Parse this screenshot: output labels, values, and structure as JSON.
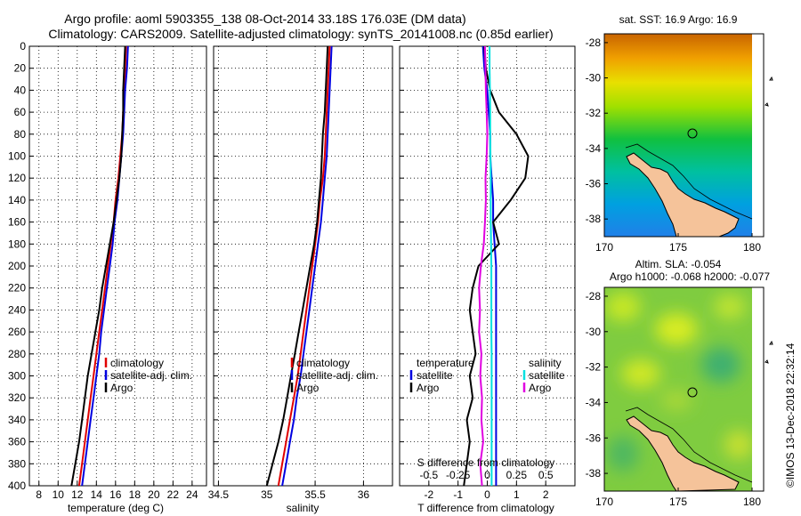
{
  "header": {
    "title_line1": "Argo profile: aoml 5903355_138 08-Oct-2014 33.18S 176.03E (DM data)",
    "title_line2": "Climatology: CARS2009. Satellite-adjusted climatology: synTS_20141008.nc (0.85d earlier)"
  },
  "footer": {
    "credit": "©IMOS 13-Dec-2018 22:32:14"
  },
  "colors": {
    "climatology": "#e00000",
    "satellite": "#0000e0",
    "argo": "#000000",
    "s_satellite": "#00e0e0",
    "s_argo": "#e000e0"
  },
  "chart_data": [
    {
      "type": "line",
      "id": "temperature",
      "xlabel": "temperature (deg C)",
      "ylabel": "depth",
      "xlim": [
        7,
        25.5
      ],
      "ylim": [
        400,
        0
      ],
      "xticks": [
        8,
        10,
        12,
        14,
        16,
        18,
        20,
        22,
        24
      ],
      "yticks": [
        0,
        20,
        40,
        60,
        80,
        100,
        120,
        140,
        160,
        180,
        200,
        220,
        240,
        260,
        280,
        300,
        320,
        340,
        360,
        380,
        400
      ],
      "grid": true,
      "legend": [
        "climatology",
        "satellite-adj. clim.",
        "Argo"
      ],
      "series": [
        {
          "name": "climatology",
          "color": "#e00000",
          "depth": [
            0,
            20,
            40,
            60,
            80,
            100,
            120,
            140,
            160,
            180,
            200,
            220,
            240,
            260,
            280,
            300,
            320,
            340,
            360,
            380,
            400
          ],
          "values": [
            17.1,
            17.0,
            16.9,
            16.8,
            16.7,
            16.5,
            16.3,
            16.0,
            15.8,
            15.5,
            15.2,
            14.9,
            14.6,
            14.3,
            14.0,
            13.7,
            13.4,
            13.1,
            12.8,
            12.5,
            12.2
          ]
        },
        {
          "name": "satellite-adj. clim.",
          "color": "#0000e0",
          "depth": [
            0,
            20,
            40,
            60,
            80,
            100,
            120,
            140,
            160,
            180,
            200,
            220,
            240,
            260,
            280,
            300,
            320,
            340,
            360,
            380,
            400
          ],
          "values": [
            17.3,
            17.2,
            17.0,
            16.9,
            16.8,
            16.6,
            16.4,
            16.2,
            15.9,
            15.7,
            15.4,
            15.1,
            14.8,
            14.5,
            14.3,
            14.0,
            13.7,
            13.4,
            13.1,
            12.8,
            12.5
          ]
        },
        {
          "name": "Argo",
          "color": "#000000",
          "depth": [
            0,
            20,
            40,
            60,
            80,
            100,
            120,
            140,
            160,
            180,
            200,
            220,
            240,
            260,
            280,
            300,
            320,
            340,
            360,
            380,
            400
          ],
          "values": [
            17.0,
            16.9,
            16.8,
            16.8,
            16.7,
            16.6,
            16.4,
            16.1,
            15.8,
            15.4,
            15.0,
            14.6,
            14.3,
            13.9,
            13.5,
            13.1,
            12.8,
            12.5,
            12.2,
            11.8,
            11.4
          ]
        }
      ]
    },
    {
      "type": "line",
      "id": "salinity",
      "xlabel": "salinity",
      "ylabel": "depth",
      "xlim": [
        34.45,
        36.3
      ],
      "ylim": [
        400,
        0
      ],
      "xticks": [
        34.5,
        35,
        35.5,
        36
      ],
      "xtick_labels": [
        "34.5",
        "35",
        "35.5",
        "36"
      ],
      "grid": true,
      "legend": [
        "climatology",
        "satellite-adj. clim.",
        "Argo"
      ],
      "series": [
        {
          "name": "climatology",
          "color": "#e00000",
          "depth": [
            0,
            20,
            40,
            60,
            80,
            100,
            120,
            140,
            160,
            180,
            200,
            220,
            240,
            260,
            280,
            300,
            320,
            340,
            360,
            380,
            400
          ],
          "values": [
            35.65,
            35.64,
            35.63,
            35.62,
            35.61,
            35.6,
            35.58,
            35.55,
            35.53,
            35.5,
            35.47,
            35.44,
            35.41,
            35.38,
            35.35,
            35.32,
            35.28,
            35.24,
            35.2,
            35.16,
            35.12
          ]
        },
        {
          "name": "satellite-adj. clim.",
          "color": "#0000e0",
          "depth": [
            0,
            20,
            40,
            60,
            80,
            100,
            120,
            140,
            160,
            180,
            200,
            220,
            240,
            260,
            280,
            300,
            320,
            340,
            360,
            380,
            400
          ],
          "values": [
            35.67,
            35.66,
            35.65,
            35.64,
            35.63,
            35.62,
            35.6,
            35.58,
            35.56,
            35.53,
            35.5,
            35.47,
            35.44,
            35.41,
            35.38,
            35.35,
            35.31,
            35.28,
            35.24,
            35.2,
            35.16
          ]
        },
        {
          "name": "Argo",
          "color": "#000000",
          "depth": [
            0,
            20,
            40,
            60,
            80,
            100,
            120,
            140,
            160,
            180,
            200,
            220,
            240,
            260,
            280,
            300,
            320,
            340,
            360,
            380,
            400
          ],
          "values": [
            35.63,
            35.62,
            35.61,
            35.6,
            35.58,
            35.57,
            35.56,
            35.54,
            35.52,
            35.49,
            35.45,
            35.41,
            35.37,
            35.33,
            35.29,
            35.25,
            35.21,
            35.17,
            35.12,
            35.06,
            35.0
          ]
        }
      ]
    },
    {
      "type": "line",
      "id": "differences",
      "xlabel": "T difference from climatology",
      "top_axis_title": "S difference from climatology",
      "ylim": [
        400,
        0
      ],
      "xlim": [
        -3,
        3
      ],
      "xticks": [
        -2,
        -1,
        0,
        1,
        2
      ],
      "s_tick_labels": [
        "-0.5",
        "-0.25",
        "0",
        "0.25",
        "0.5"
      ],
      "grid": true,
      "legend_temperature_title": "temperature",
      "legend_salinity_title": "salinity",
      "legend_temperature": [
        "satellite",
        "Argo"
      ],
      "legend_salinity": [
        "satellite",
        "Argo"
      ],
      "series": [
        {
          "name": "T satellite",
          "color": "#0000e0",
          "depth": [
            0,
            20,
            40,
            60,
            80,
            100,
            120,
            140,
            160,
            180,
            200,
            220,
            240,
            260,
            280,
            300,
            320,
            340,
            360,
            380,
            400
          ],
          "values": [
            -0.15,
            -0.1,
            0.0,
            0.05,
            0.1,
            0.1,
            0.15,
            0.2,
            0.2,
            0.25,
            0.3,
            0.3,
            0.3,
            0.3,
            0.3,
            0.3,
            0.3,
            0.3,
            0.3,
            0.3,
            0.3
          ]
        },
        {
          "name": "T Argo",
          "color": "#000000",
          "depth": [
            0,
            20,
            40,
            60,
            80,
            100,
            120,
            140,
            160,
            180,
            200,
            220,
            240,
            260,
            280,
            300,
            320,
            340,
            360,
            380,
            400
          ],
          "values": [
            -0.1,
            -0.05,
            0.1,
            0.4,
            1.0,
            1.4,
            1.3,
            0.8,
            0.2,
            0.4,
            -0.3,
            -0.5,
            -0.6,
            -0.5,
            -0.4,
            -0.6,
            -0.5,
            -0.7,
            -0.6,
            -0.7,
            -0.8
          ]
        },
        {
          "name": "S satellite",
          "color": "#00e0e0",
          "depth": [
            0,
            20,
            40,
            60,
            80,
            100,
            120,
            140,
            160,
            180,
            200,
            220,
            240,
            260,
            280,
            300,
            320,
            340,
            360,
            380,
            400
          ],
          "values": [
            0.08,
            0.08,
            0.09,
            0.1,
            0.1,
            0.11,
            0.12,
            0.12,
            0.12,
            0.13,
            0.14,
            0.14,
            0.14,
            0.14,
            0.15,
            0.15,
            0.15,
            0.15,
            0.15,
            0.15,
            0.15
          ]
        },
        {
          "name": "S Argo",
          "color": "#e000e0",
          "depth": [
            0,
            20,
            40,
            60,
            80,
            100,
            120,
            140,
            160,
            180,
            200,
            220,
            240,
            260,
            280,
            300,
            320,
            340,
            360,
            380,
            400
          ],
          "values": [
            -0.08,
            -0.06,
            -0.05,
            -0.02,
            0.0,
            -0.02,
            -0.06,
            -0.05,
            -0.08,
            -0.12,
            -0.22,
            -0.28,
            -0.25,
            -0.28,
            -0.2,
            -0.24,
            -0.18,
            -0.2,
            -0.14,
            -0.24,
            -0.18
          ]
        }
      ]
    },
    {
      "type": "heatmap",
      "id": "sst-map",
      "title": "sat. SST: 16.9 Argo: 16.9",
      "xlim": [
        170,
        180
      ],
      "ylim": [
        -39,
        -27.5
      ],
      "xticks": [
        170,
        175,
        180
      ],
      "yticks": [
        -28,
        -30,
        -32,
        -34,
        -36,
        -38
      ],
      "marker": {
        "lon": 176.03,
        "lat": -33.18
      }
    },
    {
      "type": "heatmap",
      "id": "sla-map",
      "title_line1": "Altim. SLA: -0.054",
      "title_line2": "Argo h1000: -0.068 h2000: -0.077",
      "xlim": [
        170,
        180
      ],
      "ylim": [
        -39,
        -27.5
      ],
      "xticks": [
        170,
        175,
        180
      ],
      "yticks": [
        -28,
        -30,
        -32,
        -34,
        -36,
        -38
      ],
      "marker": {
        "lon": 176.03,
        "lat": -33.18
      }
    }
  ]
}
